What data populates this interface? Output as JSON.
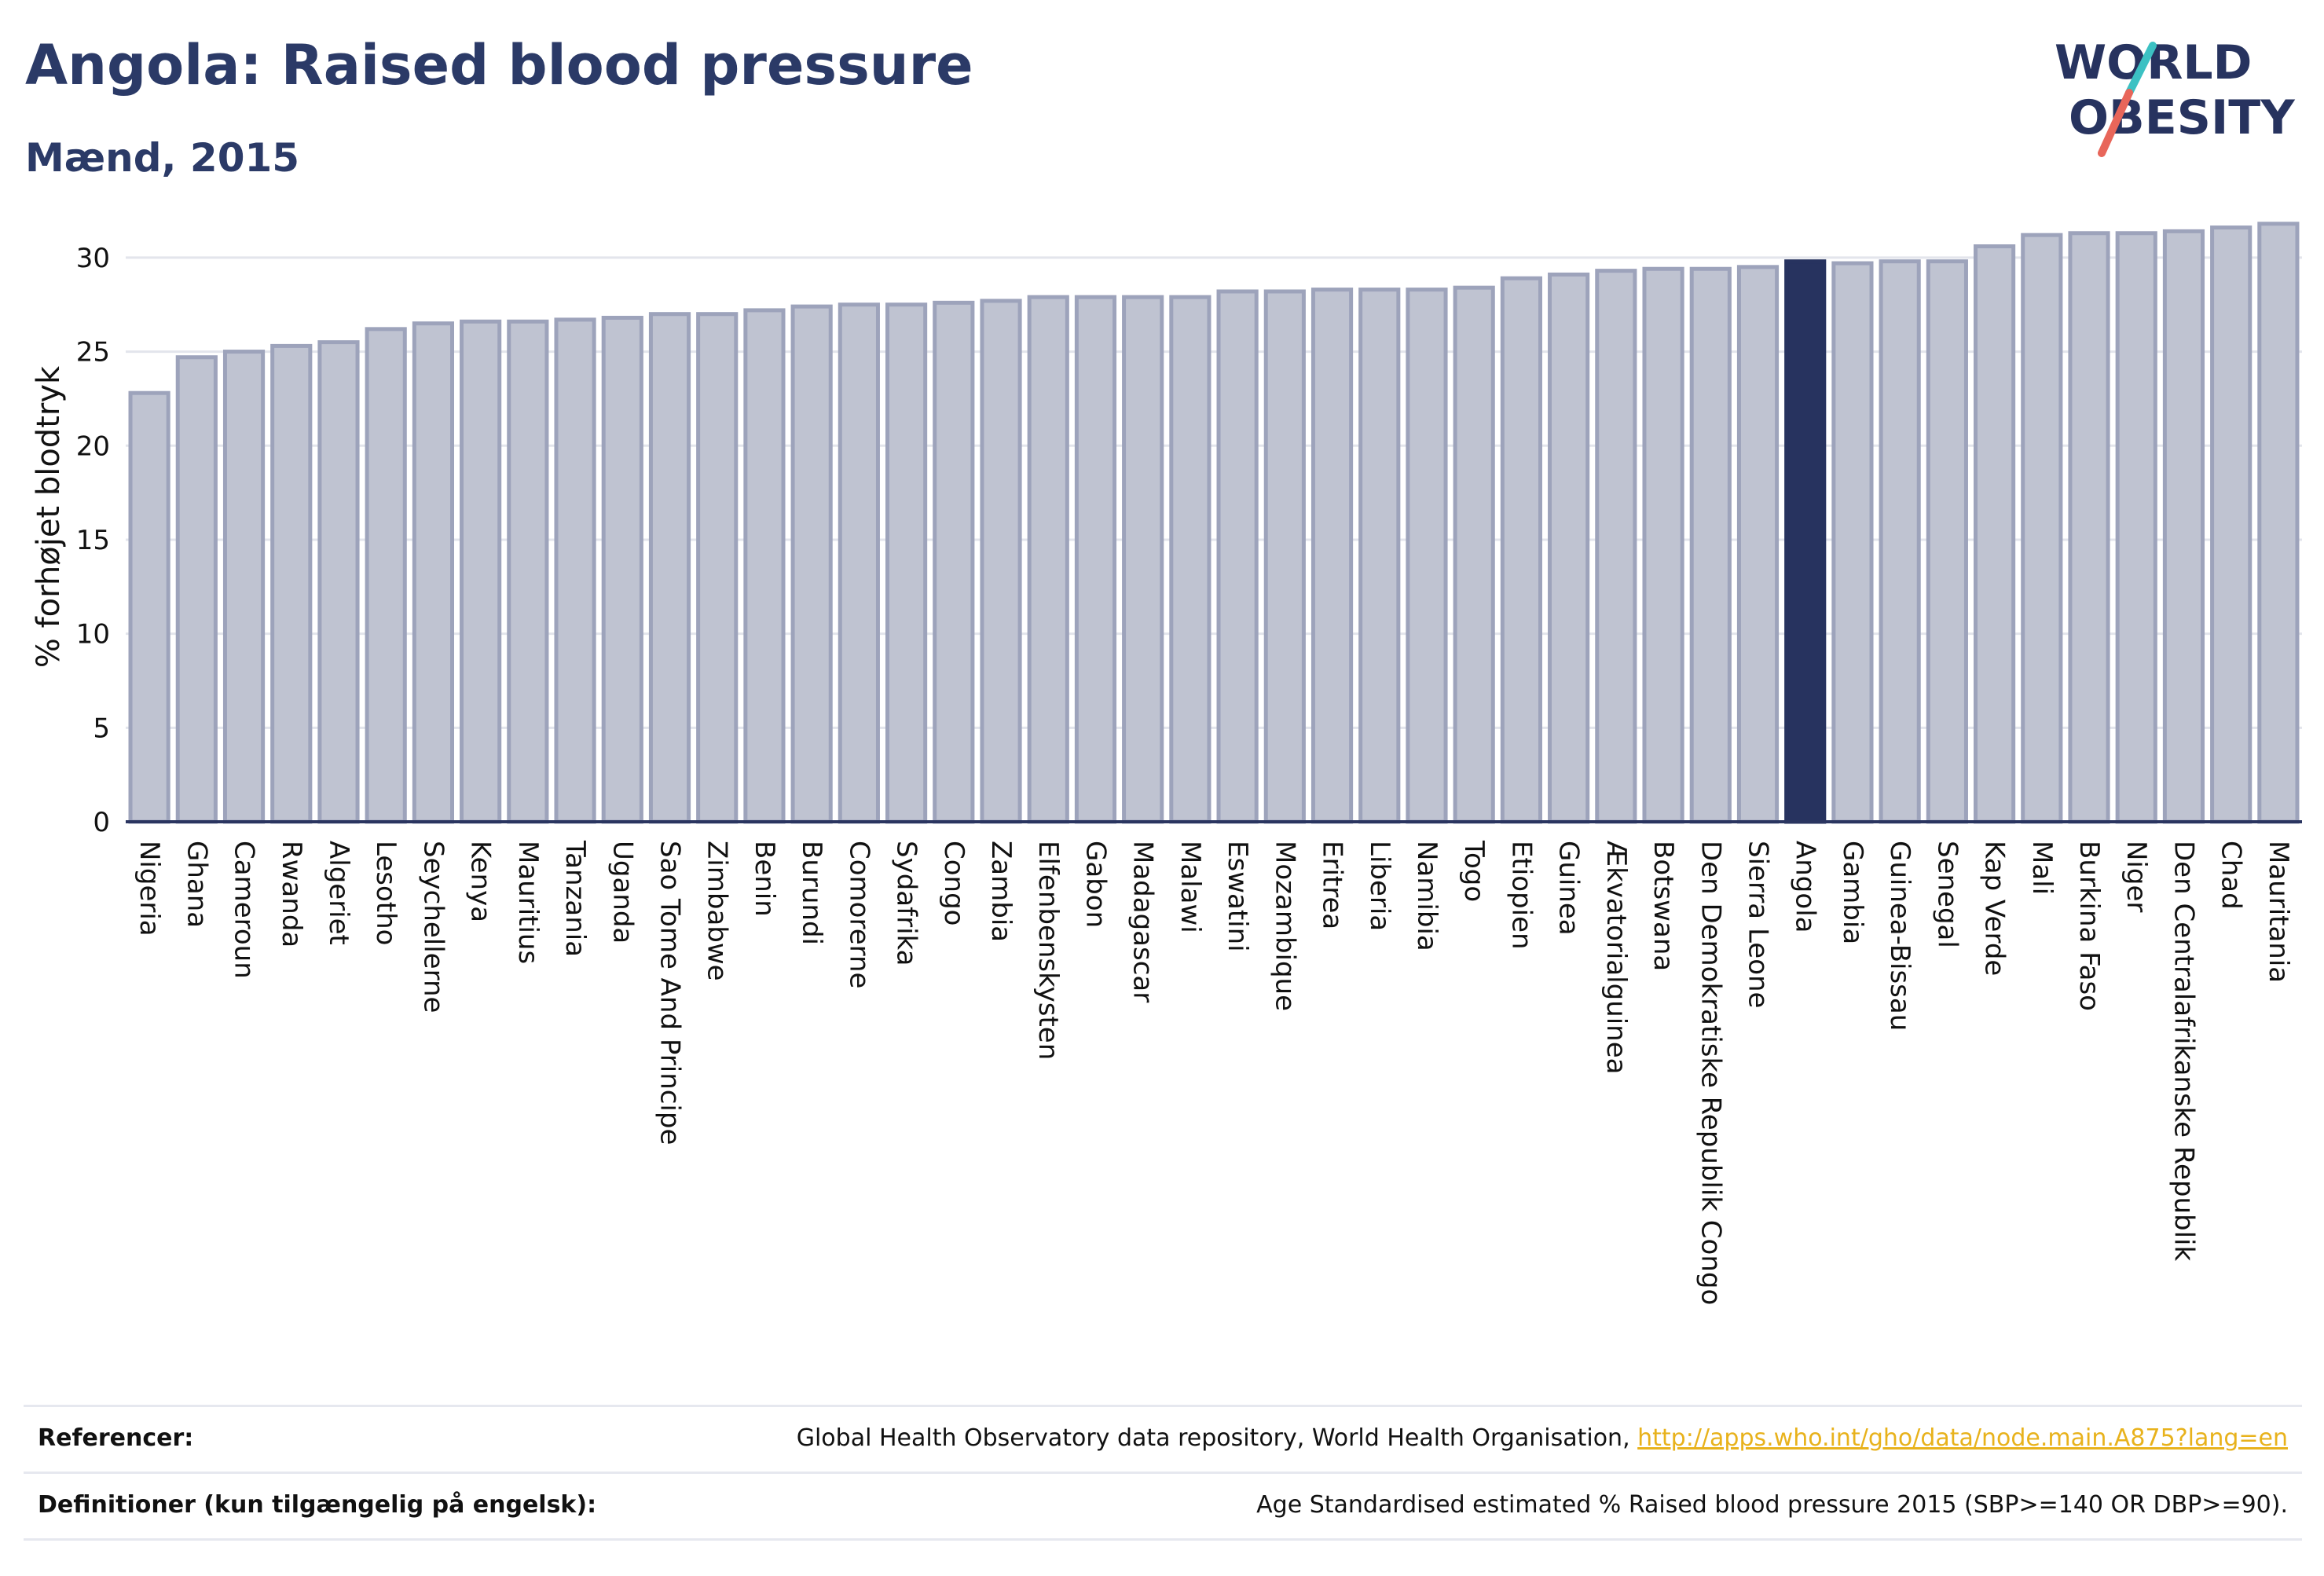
{
  "header": {
    "title": "Angola: Raised blood pressure",
    "subtitle": "Mænd, 2015"
  },
  "logo": {
    "line1": "WORLD",
    "line2": "OBESITY",
    "slash_colors": [
      "#3cc1c3",
      "#e8665a"
    ]
  },
  "chart_data": {
    "type": "bar",
    "ylabel": "% forhøjet blodtryk",
    "ylim": [
      0,
      32
    ],
    "yticks": [
      0,
      5,
      10,
      15,
      20,
      25,
      30
    ],
    "grid": true,
    "highlight": "Angola",
    "colors": {
      "bar": "#bfc3d1",
      "bar_border": "#9da3bb",
      "highlight": "#27335f",
      "axis": "#2a3560",
      "grid": "#e3e5ec"
    },
    "categories": [
      "Nigeria",
      "Ghana",
      "Cameroun",
      "Rwanda",
      "Algeriet",
      "Lesotho",
      "Seychellerne",
      "Kenya",
      "Mauritius",
      "Tanzania",
      "Uganda",
      "Sao Tome And Principe",
      "Zimbabwe",
      "Benin",
      "Burundi",
      "Comorerne",
      "Sydafrika",
      "Congo",
      "Zambia",
      "Elfenbenskysten",
      "Gabon",
      "Madagascar",
      "Malawi",
      "Eswatini",
      "Mozambique",
      "Eritrea",
      "Liberia",
      "Namibia",
      "Togo",
      "Etiopien",
      "Guinea",
      "Ækvatorialguinea",
      "Botswana",
      "Den Demokratiske Republik Congo",
      "Sierra Leone",
      "Angola",
      "Gambia",
      "Guinea-Bissau",
      "Senegal",
      "Kap Verde",
      "Mali",
      "Burkina Faso",
      "Niger",
      "Den Centralafrikanske Republik",
      "Chad",
      "Mauritania"
    ],
    "values": [
      22.8,
      24.7,
      25.0,
      25.3,
      25.5,
      26.2,
      26.5,
      26.6,
      26.6,
      26.7,
      26.8,
      27.0,
      27.0,
      27.2,
      27.4,
      27.5,
      27.5,
      27.6,
      27.7,
      27.9,
      27.9,
      27.9,
      27.9,
      28.2,
      28.2,
      28.3,
      28.3,
      28.3,
      28.4,
      28.9,
      29.1,
      29.3,
      29.4,
      29.4,
      29.5,
      29.8,
      29.7,
      29.8,
      29.8,
      30.6,
      31.2,
      31.3,
      31.3,
      31.4,
      31.6,
      31.8
    ]
  },
  "footer": {
    "references_label": "Referencer:",
    "references_text": "Global Health Observatory data repository, World Health Organisation, ",
    "references_link": "http://apps.who.int/gho/data/node.main.A875?lang=en",
    "definitions_label": "Definitioner (kun tilgængelig på engelsk):",
    "definitions_text": "Age Standardised estimated % Raised blood pressure 2015 (SBP>=140 OR DBP>=90)."
  }
}
